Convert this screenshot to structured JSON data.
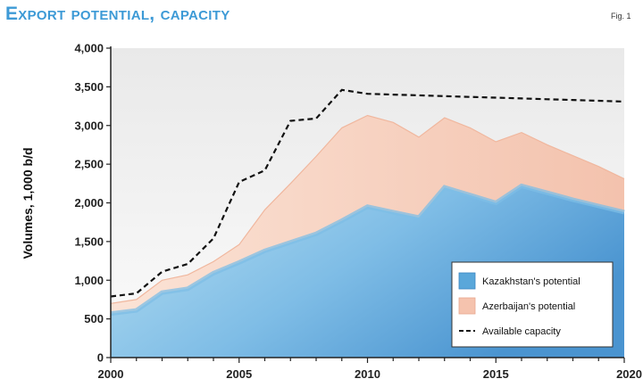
{
  "chart_data": {
    "type": "area",
    "title": "Export potential, capacity",
    "figure_label": "Fig. 1",
    "xlabel": "",
    "ylabel": "Volumes, 1,000 b/d",
    "xlim": [
      2000,
      2020
    ],
    "ylim": [
      0,
      4000
    ],
    "x_ticks": [
      2000,
      2005,
      2010,
      2015,
      2020
    ],
    "y_ticks": [
      "0",
      "500",
      "1,000",
      "1,500",
      "2,000",
      "2,500",
      "3,000",
      "3,500",
      "4,000"
    ],
    "y_tick_values": [
      0,
      500,
      1000,
      1500,
      2000,
      2500,
      3000,
      3500,
      4000
    ],
    "x": [
      2000,
      2001,
      2002,
      2003,
      2004,
      2005,
      2006,
      2007,
      2008,
      2009,
      2010,
      2011,
      2012,
      2013,
      2014,
      2015,
      2016,
      2017,
      2018,
      2019,
      2020
    ],
    "series": [
      {
        "name": "Kazakhstan's potential",
        "kind": "stacked-area",
        "color": "#5aa7da",
        "values": [
          570,
          610,
          840,
          890,
          1090,
          1230,
          1380,
          1490,
          1600,
          1770,
          1950,
          1880,
          1810,
          2200,
          2100,
          2000,
          2220,
          2130,
          2040,
          1960,
          1880
        ]
      },
      {
        "name": "Azerbaijan's potential",
        "kind": "stacked-area",
        "color": "#f5c3ae",
        "values": [
          130,
          140,
          160,
          180,
          150,
          230,
          530,
          760,
          1000,
          1200,
          1180,
          1160,
          1040,
          900,
          870,
          790,
          690,
          620,
          570,
          510,
          430
        ]
      },
      {
        "name": "Available capacity",
        "kind": "dashed-line",
        "color": "#111111",
        "values": [
          790,
          830,
          1110,
          1210,
          1540,
          2270,
          2420,
          3060,
          3090,
          3460,
          3410,
          3400,
          3390,
          3380,
          3370,
          3360,
          3350,
          3340,
          3330,
          3320,
          3310
        ]
      }
    ],
    "legend": {
      "position": "bottom-right",
      "entries": [
        "Kazakhstan's potential",
        "Azerbaijan's potential",
        "Available capacity"
      ]
    }
  }
}
